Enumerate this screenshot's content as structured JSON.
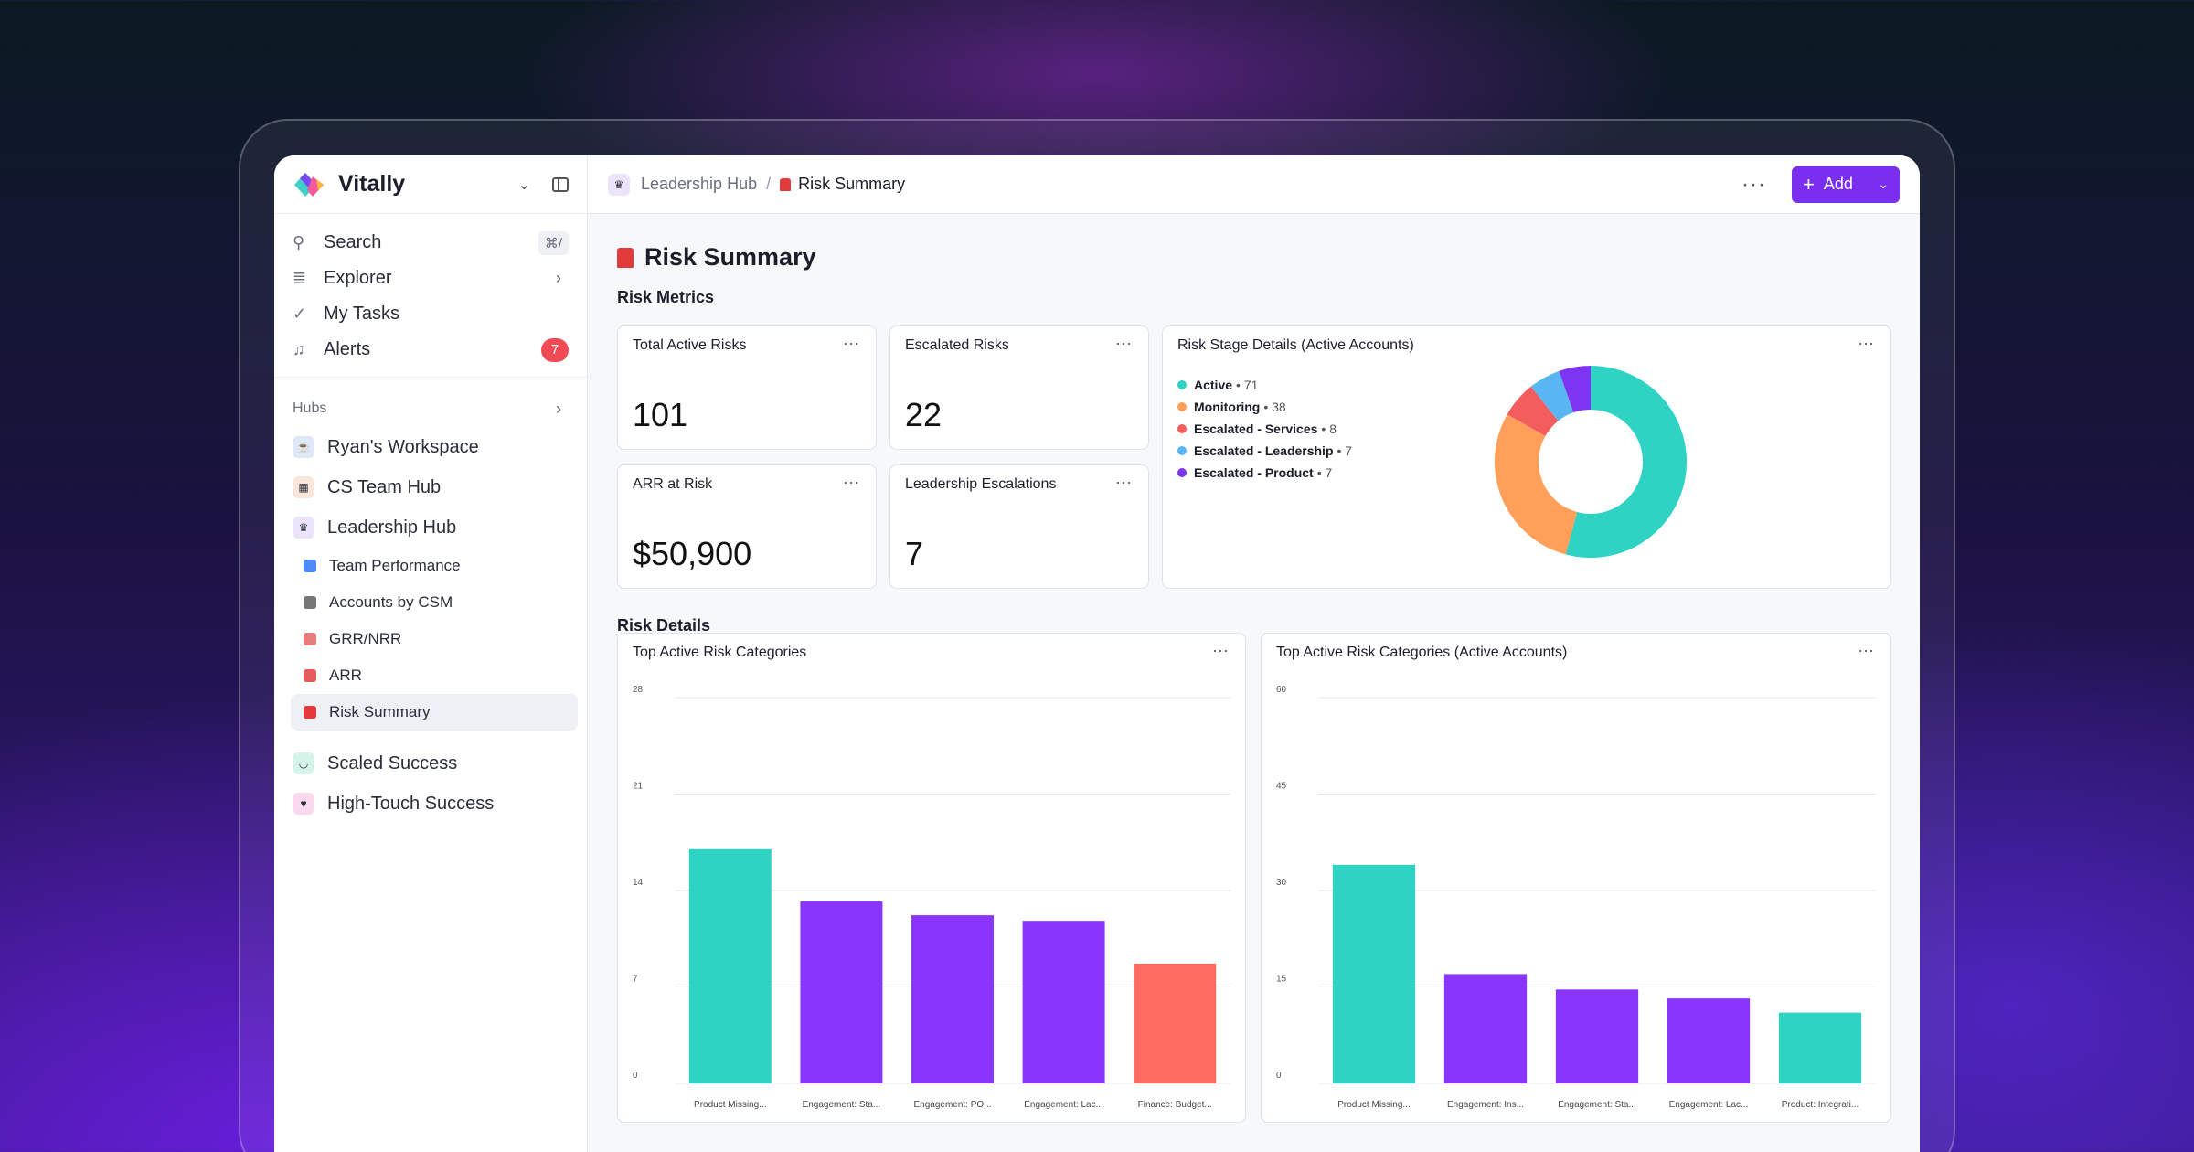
{
  "brand": {
    "name": "Vitally"
  },
  "nav": {
    "search": {
      "label": "Search",
      "shortcut": "⌘/"
    },
    "explorer": {
      "label": "Explorer"
    },
    "tasks": {
      "label": "My Tasks"
    },
    "alerts": {
      "label": "Alerts",
      "count": "7"
    }
  },
  "hubs": {
    "heading": "Hubs",
    "items": [
      {
        "label": "Ryan's Workspace",
        "color": "#dfe9f6"
      },
      {
        "label": "CS Team Hub",
        "color": "#fbe6dc"
      },
      {
        "label": "Leadership Hub",
        "color": "#ece4fb"
      }
    ],
    "sub_items": [
      {
        "label": "Team Performance",
        "color": "#4c8bf5"
      },
      {
        "label": "Accounts by CSM",
        "color": "#777777"
      },
      {
        "label": "GRR/NRR",
        "color": "#e87b7b"
      },
      {
        "label": "ARR",
        "color": "#e55a5a"
      },
      {
        "label": "Risk Summary",
        "color": "#e33b3b"
      }
    ],
    "more": [
      {
        "label": "Scaled Success",
        "color": "#d6f3ea"
      },
      {
        "label": "High-Touch Success",
        "color": "#fbd9ec"
      }
    ]
  },
  "breadcrumb": {
    "parent": "Leadership Hub",
    "sep": "/",
    "current": "Risk Summary"
  },
  "toolbar": {
    "more": "···",
    "add_label": "Add"
  },
  "page": {
    "title": "Risk Summary",
    "section_metrics": "Risk Metrics",
    "section_details": "Risk Details"
  },
  "metrics": {
    "total_active": {
      "title": "Total Active Risks",
      "value": "101"
    },
    "escalated": {
      "title": "Escalated Risks",
      "value": "22"
    },
    "arr_at_risk": {
      "title": "ARR at Risk",
      "value": "$50,900"
    },
    "leadership_esc": {
      "title": "Leadership Escalations",
      "value": "7"
    }
  },
  "card_more": "···",
  "donut": {
    "title": "Risk Stage Details (Active Accounts)",
    "items": [
      {
        "label": "Active",
        "count": 71,
        "count_text": "• 71",
        "color": "#2fd3c4"
      },
      {
        "label": "Monitoring",
        "count": 38,
        "count_text": "• 38",
        "color": "#ff9f5a"
      },
      {
        "label": "Escalated - Services",
        "count": 8,
        "count_text": "• 8",
        "color": "#f45d5d"
      },
      {
        "label": "Escalated - Leadership",
        "count": 7,
        "count_text": "• 7",
        "color": "#5ab6f2"
      },
      {
        "label": "Escalated - Product",
        "count": 7,
        "count_text": "• 7",
        "color": "#7d35f2"
      }
    ]
  },
  "chart_data": [
    {
      "type": "bar",
      "title": "Top Active Risk Categories",
      "categories": [
        "Product Missing...",
        "Engagement: Sta...",
        "Engagement: PO...",
        "Engagement: Lac...",
        "Finance: Budget..."
      ],
      "values": [
        17,
        13.2,
        12.2,
        11.8,
        8.7
      ],
      "colors": [
        "#2fd3c4",
        "#8a35fb",
        "#8a35fb",
        "#8a35fb",
        "#ff6b61"
      ],
      "ylim": [
        0,
        28
      ],
      "yticks": [
        0,
        7,
        14,
        21,
        28
      ],
      "grid": true
    },
    {
      "type": "bar",
      "title": "Top Active Risk Categories (Active Accounts)",
      "categories": [
        "Product Missing...",
        "Engagement: Ins...",
        "Engagement: Sta...",
        "Engagement: Lac...",
        "Product: Integrati..."
      ],
      "values": [
        34,
        17,
        14.6,
        13.2,
        11
      ],
      "colors": [
        "#2fd3c4",
        "#8a35fb",
        "#8a35fb",
        "#8a35fb",
        "#2fd3c4"
      ],
      "ylim": [
        0,
        60
      ],
      "yticks": [
        0,
        15,
        30,
        45,
        60
      ],
      "grid": true
    }
  ]
}
